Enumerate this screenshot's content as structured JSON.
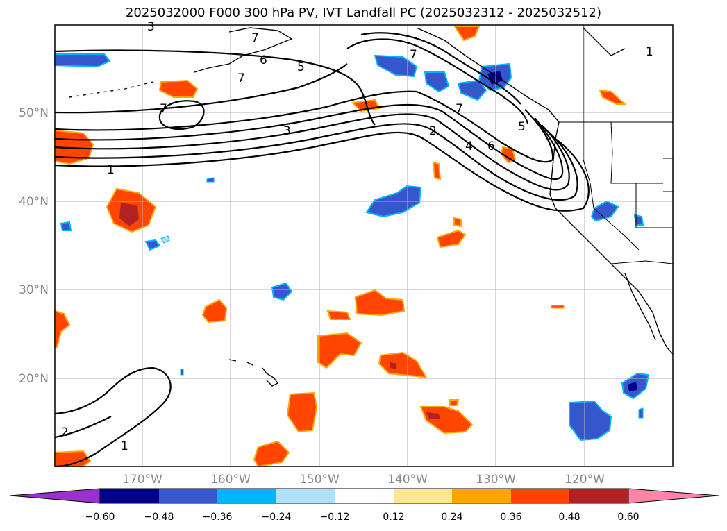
{
  "title": "2025032000 F000 300 hPa PV, IVT Landfall PC (2025032312 - 2025032512)",
  "map": {
    "lat_labels": [
      "50°N",
      "40°N",
      "30°N",
      "20°N"
    ],
    "lon_labels": [
      "170°W",
      "160°W",
      "150°W",
      "140°W",
      "130°W",
      "120°W"
    ],
    "contour_labels": [
      "3",
      "7",
      "7",
      "6",
      "5",
      "7",
      "7",
      "3",
      "1",
      "7",
      "2",
      "4",
      "6",
      "5",
      "1",
      "2",
      "1"
    ]
  },
  "colorbar": {
    "ticks": [
      "−0.60",
      "−0.48",
      "−0.36",
      "−0.24",
      "−0.12",
      "0.12",
      "0.24",
      "0.36",
      "0.48",
      "0.60"
    ],
    "colors": [
      "#9b30d0",
      "#00008b",
      "#3657cc",
      "#00b4ff",
      "#aee0f7",
      "#ffffff",
      "#ffe690",
      "#ffa500",
      "#ff4500",
      "#b22222",
      "#ff85a8",
      "#ff85a8"
    ]
  }
}
